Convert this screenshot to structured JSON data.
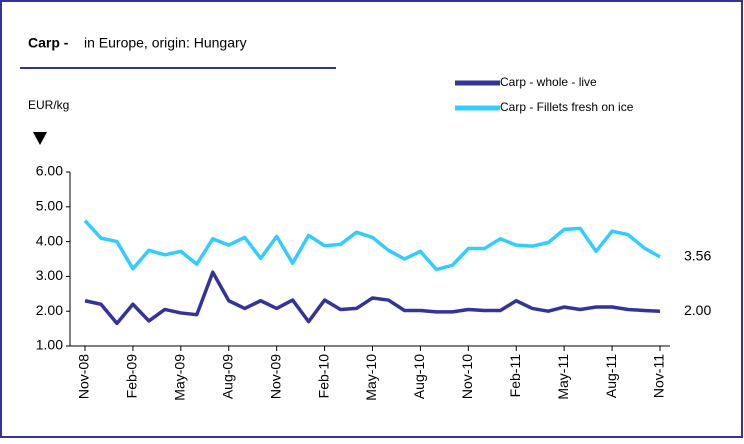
{
  "chart_data": {
    "type": "line",
    "title": "Carp -",
    "subtitle": "in Europe, origin: Hungary",
    "y_label": "EUR/kg",
    "categories": [
      "Nov-08",
      null,
      null,
      "Feb-09",
      null,
      null,
      "May-09",
      null,
      null,
      "Aug-09",
      null,
      null,
      "Nov-09",
      null,
      null,
      "Feb-10",
      null,
      null,
      "May-10",
      null,
      null,
      "Aug-10",
      null,
      null,
      "Nov-10",
      null,
      null,
      "Feb-11",
      null,
      null,
      "May-11",
      null,
      null,
      "Aug-11",
      null,
      null,
      "Nov-11"
    ],
    "series": [
      {
        "name": "Carp - whole - live",
        "color": "#333399",
        "values": [
          2.3,
          2.2,
          1.65,
          2.2,
          1.72,
          2.05,
          1.95,
          1.9,
          3.12,
          2.3,
          2.08,
          2.3,
          2.08,
          2.32,
          1.7,
          2.32,
          2.05,
          2.08,
          2.38,
          2.32,
          2.02,
          2.02,
          1.98,
          1.98,
          2.05,
          2.02,
          2.02,
          2.3,
          2.08,
          2.0,
          2.12,
          2.05,
          2.12,
          2.12,
          2.05,
          2.02,
          2.0
        ],
        "value_labels": [
          null,
          null,
          null,
          null,
          null,
          null,
          null,
          null,
          null,
          null,
          null,
          null,
          null,
          null,
          null,
          null,
          null,
          null,
          null,
          null,
          null,
          null,
          null,
          null,
          null,
          null,
          null,
          null,
          null,
          null,
          null,
          null,
          null,
          null,
          null,
          null,
          "2.00"
        ]
      },
      {
        "name": "Carp - Fillets fresh on ice",
        "color": "#33ccff",
        "values": [
          4.6,
          4.1,
          4.0,
          3.22,
          3.75,
          3.62,
          3.72,
          3.35,
          4.08,
          3.9,
          4.12,
          3.52,
          4.15,
          3.38,
          4.18,
          3.88,
          3.92,
          4.27,
          4.12,
          3.75,
          3.5,
          3.72,
          3.2,
          3.32,
          3.8,
          3.8,
          4.08,
          3.9,
          3.87,
          3.97,
          4.35,
          4.38,
          3.72,
          4.3,
          4.2,
          3.82,
          3.56
        ],
        "value_labels": [
          null,
          null,
          null,
          null,
          null,
          null,
          null,
          null,
          null,
          null,
          null,
          null,
          null,
          null,
          null,
          null,
          null,
          null,
          null,
          null,
          null,
          null,
          null,
          null,
          null,
          null,
          null,
          null,
          null,
          null,
          null,
          null,
          null,
          null,
          null,
          null,
          "3.56"
        ]
      }
    ],
    "ylim": [
      1,
      6
    ],
    "yticks": [
      {
        "value": 1,
        "label": "1.00"
      },
      {
        "value": 2,
        "label": "2.00"
      },
      {
        "value": 3,
        "label": "3.00"
      },
      {
        "value": 4,
        "label": "4.00"
      },
      {
        "value": 5,
        "label": "5.00"
      },
      {
        "value": 6,
        "label": "6.00"
      }
    ],
    "grid": false
  }
}
